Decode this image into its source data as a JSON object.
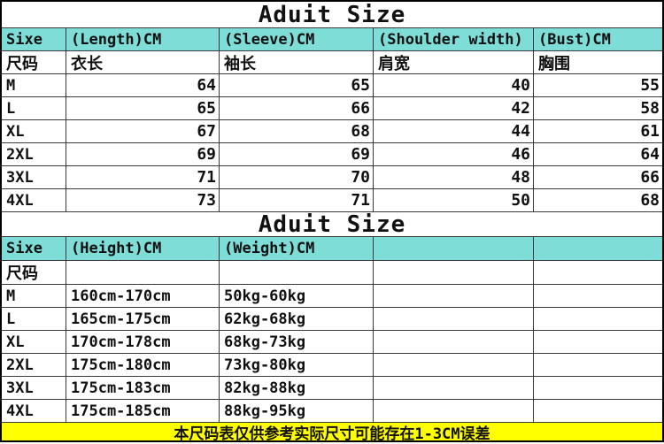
{
  "colors": {
    "header_bg": "#7EDDD7",
    "footer_bg": "#FFFF00",
    "grid_line": "#3A3A3A",
    "outer_border": "#000000"
  },
  "table1": {
    "title": "Aduit Size",
    "headers": [
      "Sixe",
      "(Length)CM",
      "(Sleeve)CM",
      "(Shoulder width)",
      "(Bust)CM"
    ],
    "cn_headers": [
      "尺码",
      "衣长",
      "袖长",
      "肩宽",
      "胸围"
    ],
    "rows": [
      {
        "size": "M",
        "length": "64",
        "sleeve": "65",
        "shoulder": "40",
        "bust": "55"
      },
      {
        "size": "L",
        "length": "65",
        "sleeve": "66",
        "shoulder": "42",
        "bust": "58"
      },
      {
        "size": "XL",
        "length": "67",
        "sleeve": "68",
        "shoulder": "44",
        "bust": "61"
      },
      {
        "size": "2XL",
        "length": "69",
        "sleeve": "69",
        "shoulder": "46",
        "bust": "64"
      },
      {
        "size": "3XL",
        "length": "71",
        "sleeve": "70",
        "shoulder": "48",
        "bust": "66"
      },
      {
        "size": "4XL",
        "length": "73",
        "sleeve": "71",
        "shoulder": "50",
        "bust": "68"
      }
    ]
  },
  "table2": {
    "title": "Aduit Size",
    "headers": [
      "Sixe",
      "(Height)CM",
      "(Weight)CM",
      "",
      ""
    ],
    "cn_headers": [
      "尺码",
      "",
      "",
      "",
      ""
    ],
    "rows": [
      {
        "size": "M",
        "height": "160cm-170cm",
        "weight": "50kg-60kg"
      },
      {
        "size": "L",
        "height": "165cm-175cm",
        "weight": "62kg-68kg"
      },
      {
        "size": "XL",
        "height": "170cm-178cm",
        "weight": "68kg-73kg"
      },
      {
        "size": "2XL",
        "height": "175cm-180cm",
        "weight": "73kg-80kg"
      },
      {
        "size": "3XL",
        "height": "175cm-183cm",
        "weight": "82kg-88kg"
      },
      {
        "size": "4XL",
        "height": "175cm-185cm",
        "weight": "88kg-95kg"
      }
    ]
  },
  "footer": {
    "note": "本尺码表仅供参考实际尺寸可能存在1-3CM误差"
  }
}
